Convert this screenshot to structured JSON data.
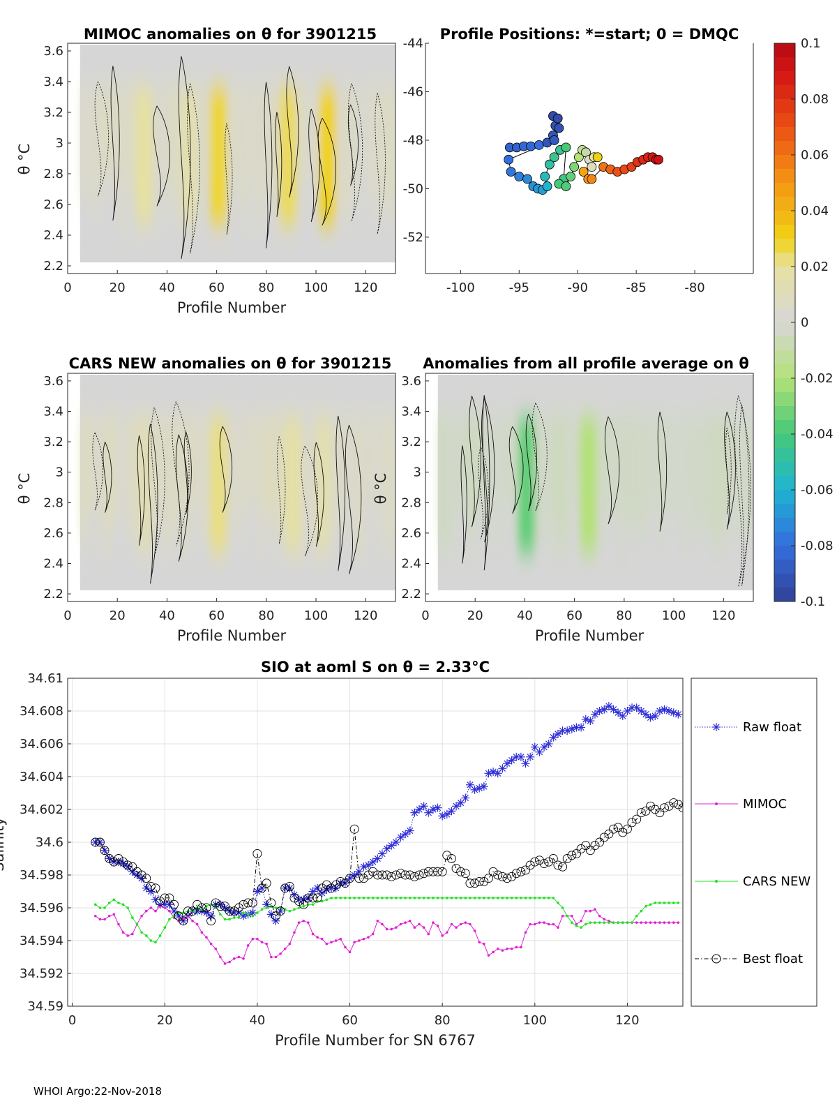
{
  "footer": "WHOI Argo:22-Nov-2018",
  "colorbar": {
    "ticks": [
      "0.1",
      "0.08",
      "0.06",
      "0.04",
      "0.02",
      "0",
      "-0.02",
      "-0.04",
      "-0.06",
      "-0.08",
      "-0.1"
    ],
    "range": [
      -0.1,
      0.1
    ]
  },
  "chart_data": [
    {
      "type": "heatmap",
      "id": "mimoc",
      "title": "MIMOC anomalies on θ  for 3901215",
      "xlabel": "Profile Number",
      "ylabel": "θ °C",
      "xlim": [
        0,
        132
      ],
      "ylim": [
        2.15,
        3.65
      ],
      "xticks": [
        "0",
        "20",
        "40",
        "60",
        "80",
        "100",
        "120"
      ],
      "yticks": [
        "2.2",
        "2.4",
        "2.6",
        "2.8",
        "3",
        "3.2",
        "3.4",
        "3.6"
      ],
      "warm_bands": [
        [
          30,
          0.02
        ],
        [
          48,
          0.015
        ],
        [
          60,
          0.028
        ],
        [
          88,
          0.025
        ],
        [
          104,
          0.03
        ]
      ]
    },
    {
      "type": "scatter",
      "id": "positions",
      "title": "Profile Positions: *=start; 0 = DMQC",
      "xlim": [
        -103,
        -75
      ],
      "ylim": [
        -53.5,
        -44
      ],
      "xticks": [
        "-100",
        "-95",
        "-90",
        "-85",
        "-80"
      ],
      "yticks": [
        "-44",
        "-46",
        "-48",
        "-50",
        "-52"
      ],
      "track": [
        [
          -95.8,
          -48.3,
          -0.085
        ],
        [
          -95.2,
          -48.3,
          -0.085
        ],
        [
          -94.6,
          -48.25,
          -0.082
        ],
        [
          -94.0,
          -48.25,
          -0.082
        ],
        [
          -93.3,
          -48.2,
          -0.08
        ],
        [
          -92.6,
          -48.1,
          -0.09
        ],
        [
          -92.1,
          -47.8,
          -0.09
        ],
        [
          -91.9,
          -47.4,
          -0.092
        ],
        [
          -92.1,
          -47.0,
          -0.095
        ],
        [
          -91.7,
          -47.1,
          -0.095
        ],
        [
          -91.6,
          -47.5,
          -0.092
        ],
        [
          -92.0,
          -48.0,
          -0.088
        ],
        [
          -95.9,
          -48.8,
          -0.08
        ],
        [
          -95.7,
          -49.3,
          -0.078
        ],
        [
          -95.0,
          -49.5,
          -0.075
        ],
        [
          -94.3,
          -49.6,
          -0.072
        ],
        [
          -93.8,
          -49.9,
          -0.07
        ],
        [
          -93.4,
          -50.0,
          -0.068
        ],
        [
          -93.0,
          -50.05,
          -0.066
        ],
        [
          -92.6,
          -49.9,
          -0.06
        ],
        [
          -92.8,
          -49.5,
          -0.055
        ],
        [
          -92.4,
          -49.0,
          -0.05
        ],
        [
          -92.0,
          -48.7,
          -0.045
        ],
        [
          -91.5,
          -48.4,
          -0.045
        ],
        [
          -91.0,
          -48.3,
          -0.04
        ],
        [
          -91.2,
          -49.6,
          -0.042
        ],
        [
          -91.6,
          -49.8,
          -0.04
        ],
        [
          -91.0,
          -49.9,
          -0.038
        ],
        [
          -90.6,
          -49.5,
          -0.035
        ],
        [
          -90.3,
          -49.1,
          -0.03
        ],
        [
          -89.9,
          -48.7,
          -0.02
        ],
        [
          -89.6,
          -48.4,
          -0.015
        ],
        [
          -89.3,
          -48.5,
          -0.01
        ],
        [
          -89.0,
          -48.8,
          0.005
        ],
        [
          -88.8,
          -49.1,
          0.01
        ],
        [
          -88.6,
          -48.7,
          0.02
        ],
        [
          -88.3,
          -48.7,
          0.03
        ],
        [
          -89.5,
          -49.3,
          0.045
        ],
        [
          -89.1,
          -49.6,
          0.05
        ],
        [
          -88.8,
          -49.6,
          0.055
        ],
        [
          -87.8,
          -49.1,
          0.06
        ],
        [
          -87.2,
          -49.2,
          0.065
        ],
        [
          -86.6,
          -49.3,
          0.07
        ],
        [
          -86.0,
          -49.2,
          0.072
        ],
        [
          -85.4,
          -49.1,
          0.075
        ],
        [
          -84.9,
          -48.9,
          0.08
        ],
        [
          -84.4,
          -48.8,
          0.083
        ],
        [
          -84.0,
          -48.7,
          0.085
        ],
        [
          -83.6,
          -48.7,
          0.088
        ],
        [
          -83.3,
          -48.8,
          0.09
        ],
        [
          -83.1,
          -48.8,
          0.092
        ]
      ]
    },
    {
      "type": "heatmap",
      "id": "cars",
      "title": "CARS NEW anomalies on θ for 3901215",
      "xlabel": "Profile Number",
      "ylabel": "θ °C",
      "xlim": [
        0,
        132
      ],
      "ylim": [
        2.15,
        3.65
      ],
      "xticks": [
        "0",
        "20",
        "40",
        "60",
        "80",
        "100",
        "120"
      ],
      "yticks": [
        "2.2",
        "2.4",
        "2.6",
        "2.8",
        "3",
        "3.2",
        "3.4",
        "3.6"
      ],
      "warm_bands": [
        [
          30,
          0.012
        ],
        [
          60,
          0.022
        ],
        [
          90,
          0.018
        ],
        [
          102,
          0.014
        ]
      ]
    },
    {
      "type": "heatmap",
      "id": "avg",
      "title": "Anomalies from all profile average on θ",
      "xlabel": "Profile Number",
      "ylabel": "θ °C",
      "xlim": [
        0,
        132
      ],
      "ylim": [
        2.15,
        3.65
      ],
      "xticks": [
        "0",
        "20",
        "40",
        "60",
        "80",
        "100",
        "120"
      ],
      "yticks": [
        "2.2",
        "2.4",
        "2.6",
        "2.8",
        "3",
        "3.2",
        "3.4",
        "3.6"
      ],
      "cool_bands": [
        [
          40,
          -0.035
        ],
        [
          65,
          -0.02
        ]
      ]
    },
    {
      "type": "line",
      "id": "salinity",
      "title": "SIO at aoml S on θ = 2.33°C",
      "xlabel": "Profile Number for SN 6767",
      "ylabel": "Salinity",
      "xlim": [
        -1,
        132
      ],
      "ylim": [
        34.59,
        34.61
      ],
      "xticks": [
        "0",
        "20",
        "40",
        "60",
        "80",
        "100",
        "120"
      ],
      "yticks": [
        "34.59",
        "34.592",
        "34.594",
        "34.596",
        "34.598",
        "34.6",
        "34.602",
        "34.604",
        "34.606",
        "34.608",
        "34.61"
      ],
      "x_start": 5,
      "series": [
        {
          "name": "Raw float",
          "color": "#2b2bd6",
          "values": [
            34.6,
            34.6,
            34.5995,
            34.599,
            34.5988,
            34.5988,
            34.5987,
            34.5985,
            34.5982,
            34.598,
            34.5978,
            34.5972,
            34.597,
            34.5965,
            34.5962,
            34.5962,
            34.5962,
            34.5958,
            34.5955,
            34.5952,
            34.5955,
            34.5958,
            34.5958,
            34.5958,
            34.5957,
            34.5955,
            34.5962,
            34.5962,
            34.596,
            34.5958,
            34.5957,
            34.5957,
            34.5955,
            34.5956,
            34.5957,
            34.597,
            34.5972,
            34.5962,
            34.5956,
            34.5952,
            34.5958,
            34.5972,
            34.5972,
            34.5968,
            34.5965,
            34.5965,
            34.5966,
            34.597,
            34.5972,
            34.5969,
            34.5971,
            34.5972,
            34.5972,
            34.5975,
            34.5975,
            34.5978,
            34.598,
            34.5982,
            34.5985,
            34.5986,
            34.5988,
            34.599,
            34.5993,
            34.5996,
            34.5998,
            34.6,
            34.6003,
            34.6005,
            34.6007,
            34.6018,
            34.602,
            34.6022,
            34.6018,
            34.602,
            34.6021,
            34.6016,
            34.6017,
            34.6019,
            34.6022,
            34.6024,
            34.6027,
            34.6035,
            34.6032,
            34.6033,
            34.6034,
            34.6042,
            34.6043,
            34.6042,
            34.6045,
            34.6048,
            34.605,
            34.6052,
            34.6052,
            34.6048,
            34.6052,
            34.6058,
            34.6055,
            34.6058,
            34.606,
            34.6064,
            34.6066,
            34.6068,
            34.6068,
            34.6069,
            34.607,
            34.607,
            34.6075,
            34.6074,
            34.6078,
            34.608,
            34.6081,
            34.6083,
            34.6081,
            34.6079,
            34.6077,
            34.608,
            34.6082,
            34.6082,
            34.608,
            34.6078,
            34.6076,
            34.6077,
            34.608,
            34.6081,
            34.608,
            34.6079,
            34.6078
          ]
        },
        {
          "name": "MIMOC",
          "color": "#e020d6",
          "values": [
            34.5955,
            34.5953,
            34.5953,
            34.5955,
            34.5956,
            34.595,
            34.5945,
            34.5943,
            34.5944,
            34.595,
            34.5955,
            34.5958,
            34.596,
            34.5958,
            34.5961,
            34.596,
            34.5958,
            34.5954,
            34.5952,
            34.5953,
            34.5955,
            34.5952,
            34.595,
            34.5945,
            34.5942,
            34.5938,
            34.5935,
            34.593,
            34.5926,
            34.5927,
            34.5929,
            34.593,
            34.5929,
            34.5937,
            34.5941,
            34.5941,
            34.5939,
            34.5938,
            34.593,
            34.593,
            34.5932,
            34.5935,
            34.5938,
            34.5945,
            34.5951,
            34.5952,
            34.5951,
            34.5944,
            34.5942,
            34.5941,
            34.5938,
            34.5939,
            34.594,
            34.5941,
            34.5936,
            34.5933,
            34.5939,
            34.594,
            34.5941,
            34.5942,
            34.5944,
            34.5952,
            34.595,
            34.5947,
            34.5947,
            34.5948,
            34.595,
            34.5951,
            34.5952,
            34.5948,
            34.595,
            34.5948,
            34.5944,
            34.5951,
            34.5949,
            34.5943,
            34.5945,
            34.595,
            34.5948,
            34.595,
            34.5951,
            34.595,
            34.5946,
            34.5939,
            34.5938,
            34.5931,
            34.5933,
            34.5935,
            34.5934,
            34.5935,
            34.5935,
            34.5936,
            34.5936,
            34.5945,
            34.595,
            34.595,
            34.5951,
            34.5951,
            34.595,
            34.595,
            34.5948,
            34.5955,
            34.5955,
            34.5955,
            34.595,
            34.5952,
            34.5958,
            34.5958,
            34.5959,
            34.5955,
            34.5953,
            34.5952,
            34.5951,
            34.5951,
            34.5951,
            34.5951,
            34.5951,
            34.5951,
            34.5951,
            34.5951,
            34.5951,
            34.5951,
            34.5951,
            34.5951,
            34.5951,
            34.5951,
            34.5951
          ]
        },
        {
          "name": "CARS NEW",
          "color": "#22e022",
          "values": [
            34.5962,
            34.596,
            34.596,
            34.5963,
            34.5965,
            34.5963,
            34.5962,
            34.596,
            34.5954,
            34.595,
            34.5945,
            34.5943,
            34.594,
            34.5939,
            34.5943,
            34.5948,
            34.5953,
            34.5955,
            34.5957,
            34.5957,
            34.5958,
            34.5958,
            34.596,
            34.5959,
            34.5961,
            34.5962,
            34.5961,
            34.5956,
            34.5953,
            34.5953,
            34.5954,
            34.5954,
            34.5957,
            34.5956,
            34.5955,
            34.5957,
            34.5959,
            34.596,
            34.5961,
            34.596,
            34.596,
            34.5959,
            34.5958,
            34.5959,
            34.596,
            34.5961,
            34.5962,
            34.5962,
            34.5964,
            34.5964,
            34.5965,
            34.5966,
            34.5966,
            34.5966,
            34.5966,
            34.5966,
            34.5966,
            34.5966,
            34.5966,
            34.5966,
            34.5966,
            34.5966,
            34.5966,
            34.5966,
            34.5966,
            34.5966,
            34.5966,
            34.5966,
            34.5966,
            34.5966,
            34.5966,
            34.5966,
            34.5966,
            34.5966,
            34.5966,
            34.5966,
            34.5966,
            34.5966,
            34.5966,
            34.5966,
            34.5966,
            34.5966,
            34.5966,
            34.5966,
            34.5966,
            34.5966,
            34.5966,
            34.5966,
            34.5966,
            34.5966,
            34.5966,
            34.5966,
            34.5966,
            34.5966,
            34.5966,
            34.5966,
            34.5966,
            34.5966,
            34.5966,
            34.5966,
            34.5963,
            34.596,
            34.5955,
            34.5951,
            34.5949,
            34.5948,
            34.595,
            34.5951,
            34.5951,
            34.5951,
            34.5951,
            34.5951,
            34.5951,
            34.5951,
            34.5951,
            34.5951,
            34.5951,
            34.5955,
            34.5958,
            34.5961,
            34.5962,
            34.5963,
            34.5963,
            34.5963,
            34.5963,
            34.5963,
            34.5963
          ]
        },
        {
          "name": "Best float",
          "color": "#000000",
          "values": [
            34.6,
            34.6,
            34.5995,
            34.599,
            34.5988,
            34.599,
            34.5988,
            34.5986,
            34.5985,
            34.5982,
            34.598,
            34.5978,
            34.5973,
            34.5972,
            34.5964,
            34.5966,
            34.5966,
            34.5962,
            34.5955,
            34.5952,
            34.5958,
            34.5958,
            34.5962,
            34.596,
            34.596,
            34.5952,
            34.5963,
            34.5961,
            34.5961,
            34.5958,
            34.5958,
            34.596,
            34.5962,
            34.5963,
            34.5963,
            34.5993,
            34.5972,
            34.5975,
            34.5963,
            34.5955,
            34.5958,
            34.5972,
            34.5973,
            34.5966,
            34.5964,
            34.5962,
            34.5966,
            34.5966,
            34.5966,
            34.5972,
            34.5974,
            34.5972,
            34.5974,
            34.5976,
            34.5975,
            34.5978,
            34.6008,
            34.5978,
            34.5978,
            34.598,
            34.5982,
            34.598,
            34.598,
            34.598,
            34.5979,
            34.598,
            34.5981,
            34.598,
            34.598,
            34.5979,
            34.598,
            34.5981,
            34.5982,
            34.5982,
            34.5982,
            34.5982,
            34.5992,
            34.599,
            34.5984,
            34.5982,
            34.5981,
            34.5975,
            34.5975,
            34.5976,
            34.5976,
            34.5978,
            34.5982,
            34.598,
            34.5979,
            34.5978,
            34.5979,
            34.5981,
            34.5982,
            34.5983,
            34.5986,
            34.5988,
            34.5989,
            34.5987,
            34.5988,
            34.599,
            34.5986,
            34.5985,
            34.599,
            34.5992,
            34.5993,
            34.5996,
            34.5998,
            34.5995,
            34.5998,
            34.6,
            34.6003,
            34.6005,
            34.6008,
            34.6009,
            34.6006,
            34.6008,
            34.6012,
            34.6014,
            34.6018,
            34.6019,
            34.6022,
            34.602,
            34.6018,
            34.6021,
            34.6022,
            34.6024,
            34.6023,
            34.6021
          ]
        }
      ]
    }
  ]
}
